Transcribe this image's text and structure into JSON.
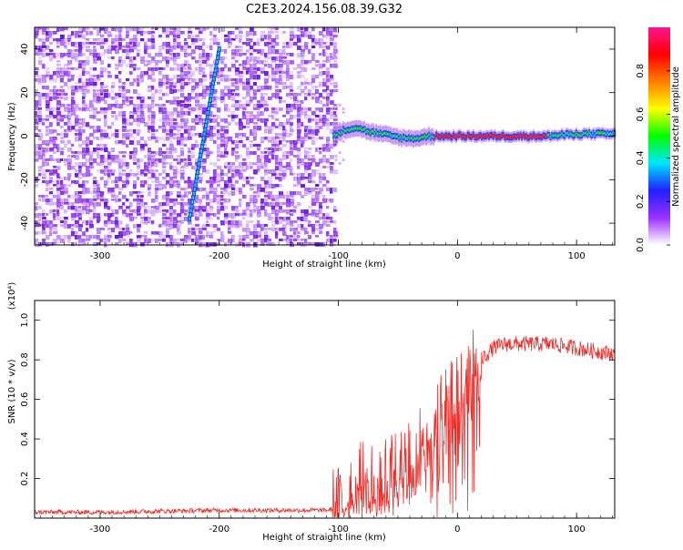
{
  "title": "C2E3.2024.156.08.39.G32",
  "colors": {
    "signal_line": "#e8302c",
    "spectrum_fg": "#7a1be0",
    "ridge_cyan": "#19c3e0",
    "ridge_red": "#ff2020",
    "ridge_green": "#22dd22"
  },
  "chart_data": [
    {
      "type": "heatmap",
      "xlabel": "Height of straight line (km)",
      "ylabel": "Frequency (Hz)",
      "xlim": [
        -355,
        132
      ],
      "ylim": [
        -50,
        50
      ],
      "x_ticks": [
        -300,
        -200,
        -100,
        0,
        100
      ],
      "y_ticks": [
        -40,
        -20,
        0,
        20,
        40
      ],
      "colorbar": {
        "label": "Normalized spectral amplitude",
        "range": [
          0,
          1
        ],
        "ticks": [
          "0.0",
          "0.2",
          "0.4",
          "0.6",
          "0.8"
        ],
        "colors": [
          "#ffffff",
          "#9b30ff",
          "#2020ff",
          "#00e5ff",
          "#00ff00",
          "#ffff00",
          "#ff8000",
          "#ff0000",
          "#ff1493"
        ]
      },
      "noise_region_x": [
        -355,
        -103
      ],
      "diagonal_track": {
        "x": [
          -225,
          -200
        ],
        "y": [
          -38,
          40
        ]
      },
      "ridge": {
        "x": [
          -105,
          -95,
          -85,
          -75,
          -65,
          -55,
          -45,
          -35,
          -25,
          -15,
          0,
          25,
          50,
          75,
          100,
          132
        ],
        "y": [
          0,
          3,
          4,
          2,
          1,
          0,
          -1,
          -1,
          0,
          0,
          0,
          0,
          0,
          0,
          1,
          1
        ]
      }
    },
    {
      "type": "line",
      "xlabel": "Height of straight line (km)",
      "ylabel": "SNR (10 * v/v)",
      "y_multiplier": "(x10⁴)",
      "xlim": [
        -355,
        132
      ],
      "ylim": [
        0,
        1.1
      ],
      "x_ticks": [
        -300,
        -200,
        -100,
        0,
        100
      ],
      "y_ticks": [
        0.2,
        0.4,
        0.6,
        0.8,
        1.0
      ],
      "series": [
        {
          "x": [
            -355,
            -300,
            -200,
            -150,
            -110,
            -100,
            -90,
            -80,
            -70,
            -60,
            -50,
            -40,
            -30,
            -20,
            -10,
            0,
            10,
            20,
            30,
            40,
            60,
            80,
            100,
            120,
            132
          ],
          "y": [
            0.03,
            0.03,
            0.04,
            0.04,
            0.04,
            0.05,
            0.1,
            0.18,
            0.22,
            0.2,
            0.25,
            0.3,
            0.38,
            0.45,
            0.55,
            0.62,
            0.72,
            0.8,
            0.86,
            0.88,
            0.88,
            0.88,
            0.86,
            0.84,
            0.83
          ]
        }
      ]
    }
  ]
}
